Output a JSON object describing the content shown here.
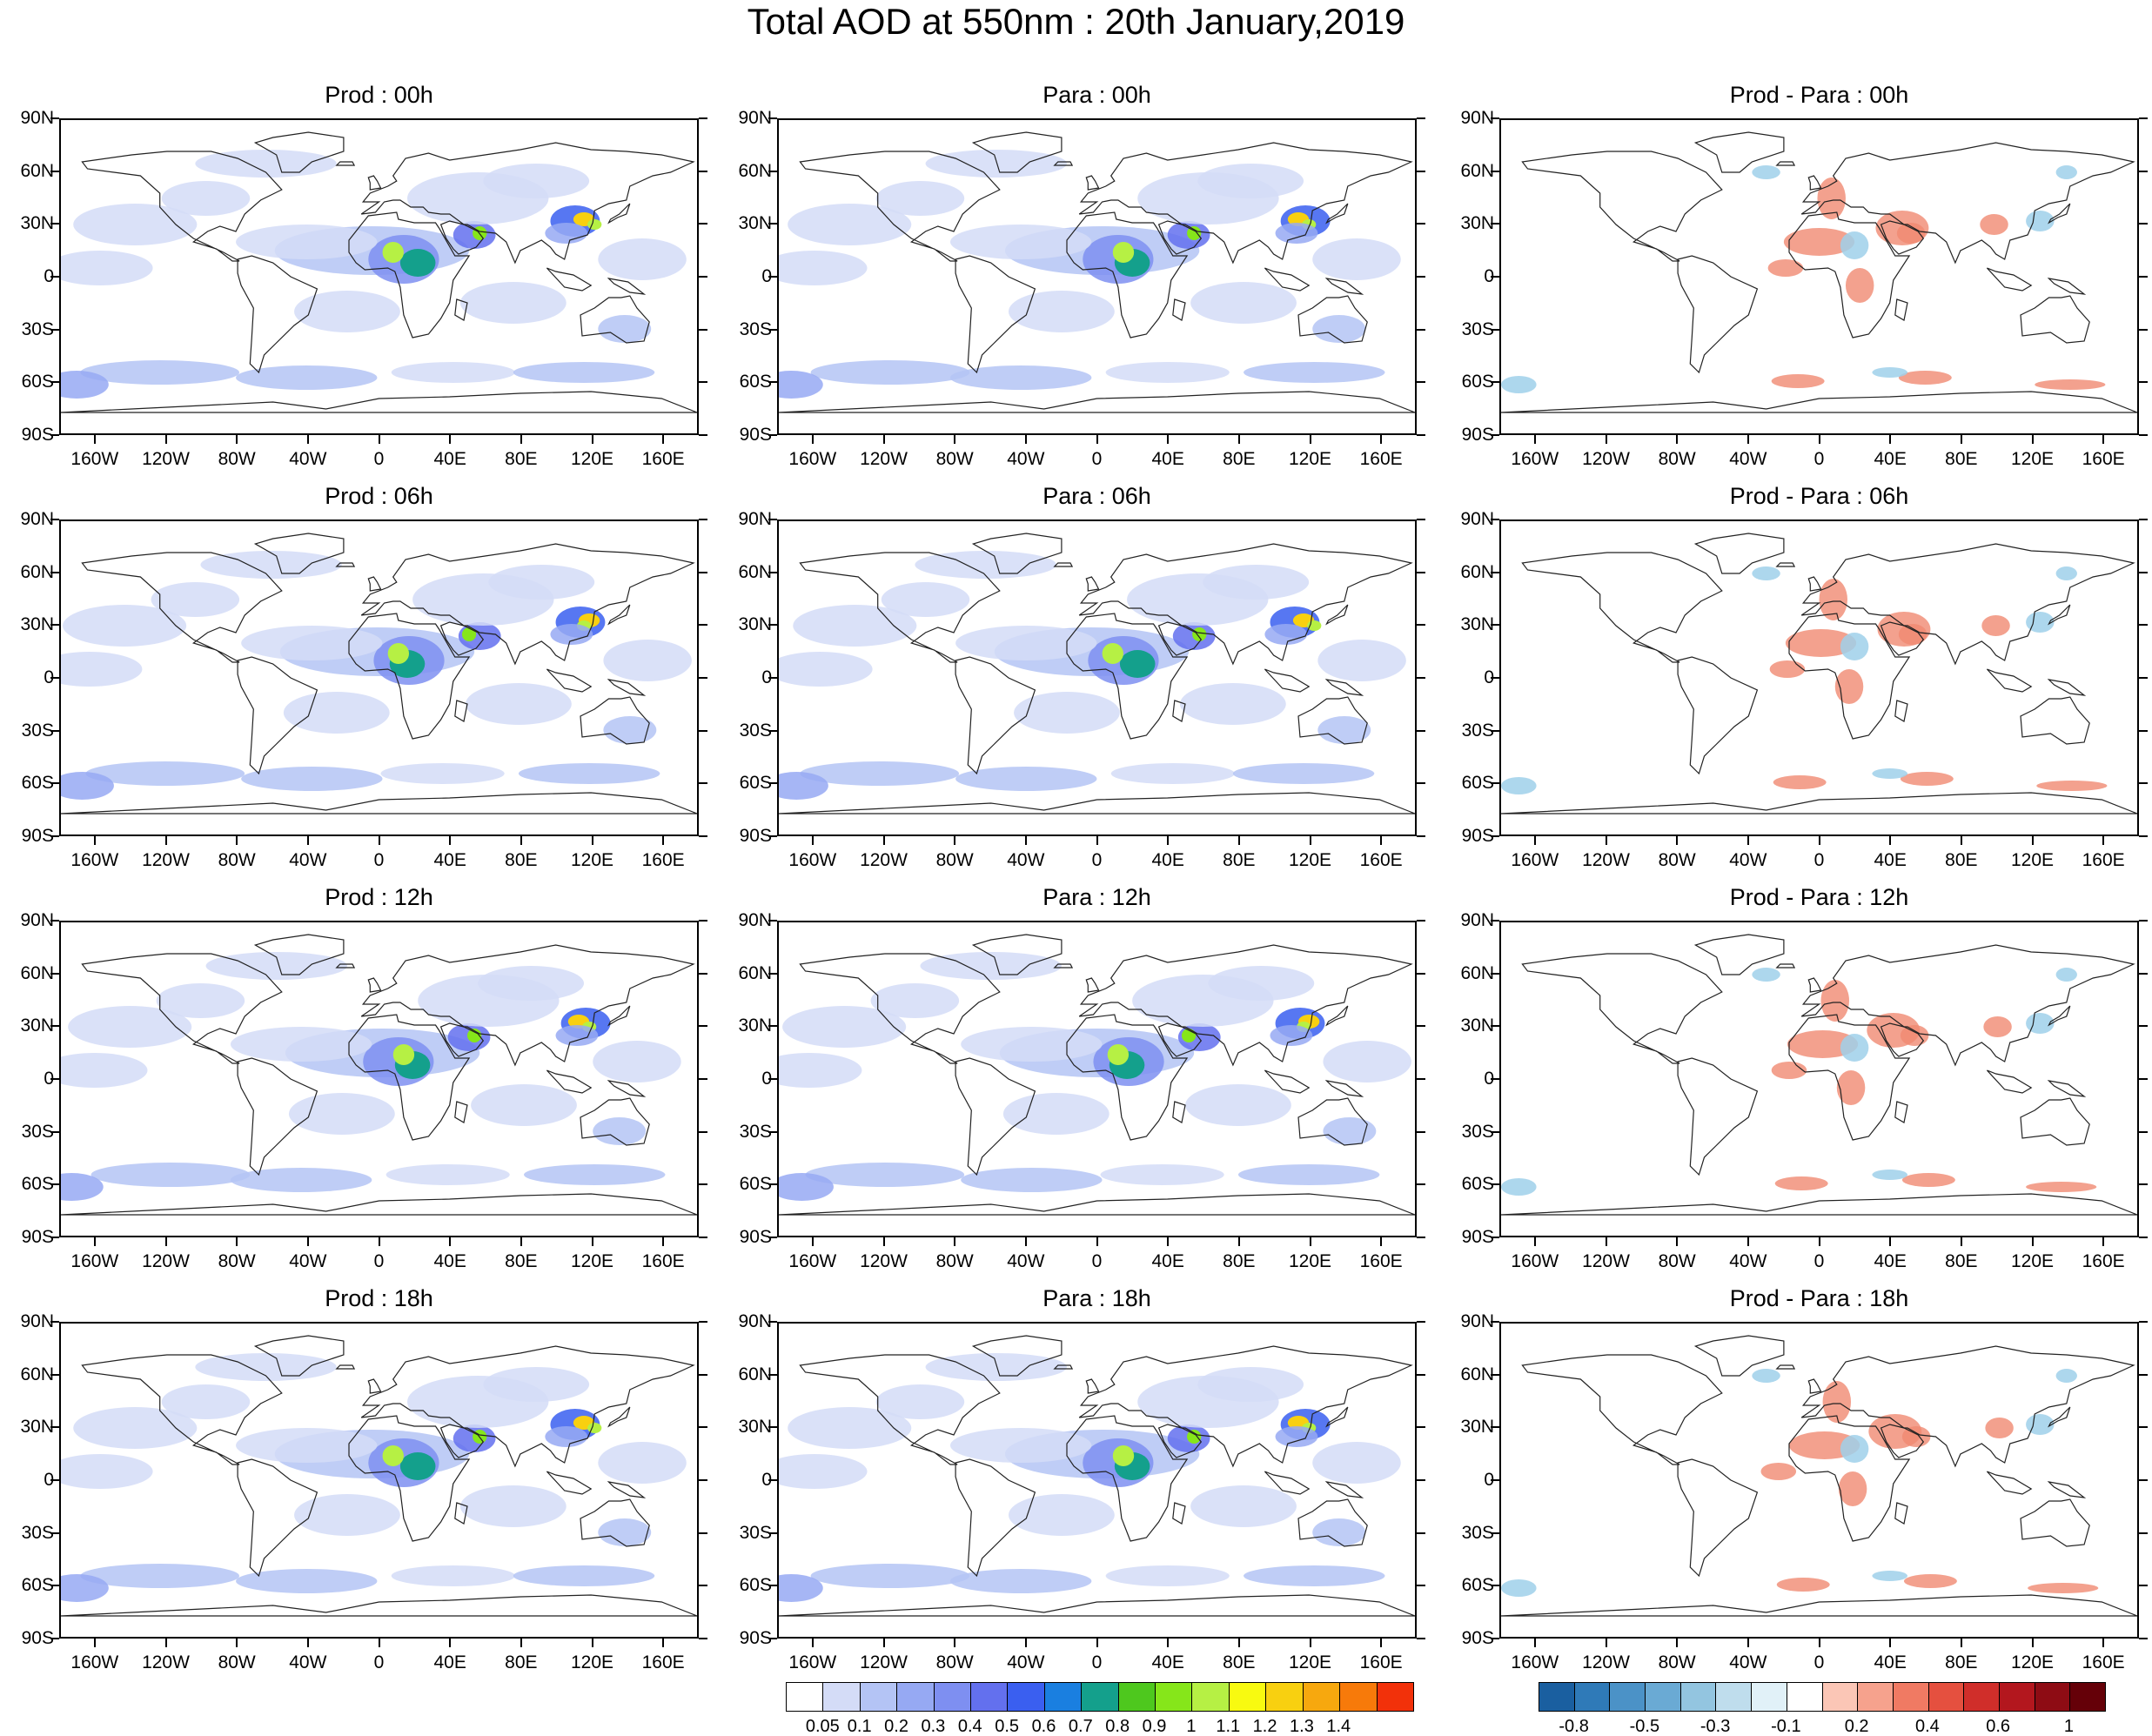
{
  "title": "Total AOD at 550nm : 20th January,2019",
  "panels": [
    {
      "id": "prod-00h",
      "title": "Prod : 00h",
      "col": 0,
      "row": 0,
      "kind": "aod"
    },
    {
      "id": "para-00h",
      "title": "Para : 00h",
      "col": 1,
      "row": 0,
      "kind": "aod"
    },
    {
      "id": "diff-00h",
      "title": "Prod - Para : 00h",
      "col": 2,
      "row": 0,
      "kind": "diff"
    },
    {
      "id": "prod-06h",
      "title": "Prod : 06h",
      "col": 0,
      "row": 1,
      "kind": "aod"
    },
    {
      "id": "para-06h",
      "title": "Para : 06h",
      "col": 1,
      "row": 1,
      "kind": "aod"
    },
    {
      "id": "diff-06h",
      "title": "Prod - Para : 06h",
      "col": 2,
      "row": 1,
      "kind": "diff"
    },
    {
      "id": "prod-12h",
      "title": "Prod : 12h",
      "col": 0,
      "row": 2,
      "kind": "aod"
    },
    {
      "id": "para-12h",
      "title": "Para : 12h",
      "col": 1,
      "row": 2,
      "kind": "aod"
    },
    {
      "id": "diff-12h",
      "title": "Prod - Para : 12h",
      "col": 2,
      "row": 2,
      "kind": "diff"
    },
    {
      "id": "prod-18h",
      "title": "Prod : 18h",
      "col": 0,
      "row": 3,
      "kind": "aod"
    },
    {
      "id": "para-18h",
      "title": "Para : 18h",
      "col": 1,
      "row": 3,
      "kind": "aod"
    },
    {
      "id": "diff-18h",
      "title": "Prod - Para : 18h",
      "col": 2,
      "row": 3,
      "kind": "diff"
    }
  ],
  "lat_labels": [
    "90N",
    "60N",
    "30N",
    "0",
    "30S",
    "60S",
    "90S"
  ],
  "lon_labels": [
    "160W",
    "120W",
    "80W",
    "40W",
    "0",
    "40E",
    "80E",
    "120E",
    "160E"
  ],
  "aod_colorbar": {
    "colors": [
      "#ffffff",
      "#d4dcf7",
      "#b4c4f5",
      "#96a9f3",
      "#7e8ff1",
      "#6370ee",
      "#3a5ff0",
      "#1a7fe0",
      "#14a08c",
      "#4ec81e",
      "#86e61a",
      "#b6f044",
      "#f8fa10",
      "#f8d010",
      "#f7a80e",
      "#f77a0a",
      "#f2310a"
    ],
    "labels": [
      "0.05",
      "0.1",
      "0.2",
      "0.3",
      "0.4",
      "0.5",
      "0.6",
      "0.7",
      "0.8",
      "0.9",
      "1",
      "1.1",
      "1.2",
      "1.3",
      "1.4"
    ]
  },
  "diff_colorbar": {
    "colors": [
      "#1a5fa0",
      "#2f7ab8",
      "#4b92c7",
      "#6aaad4",
      "#93c5e0",
      "#bfdded",
      "#e1f1f8",
      "#ffffff",
      "#fbc6b6",
      "#f6a28d",
      "#f07a63",
      "#e5503f",
      "#d02e2a",
      "#b3171e",
      "#8e0c14",
      "#650008"
    ],
    "labels": [
      "-0.8",
      "-0.5",
      "-0.3",
      "-0.1",
      "0.2",
      "0.4",
      "0.6",
      "1"
    ]
  },
  "colors": {
    "land_outline": "#222222",
    "aod_base": "#d4dcf7",
    "diff_red": "#f08a72",
    "diff_blue": "#9fd0ea"
  }
}
